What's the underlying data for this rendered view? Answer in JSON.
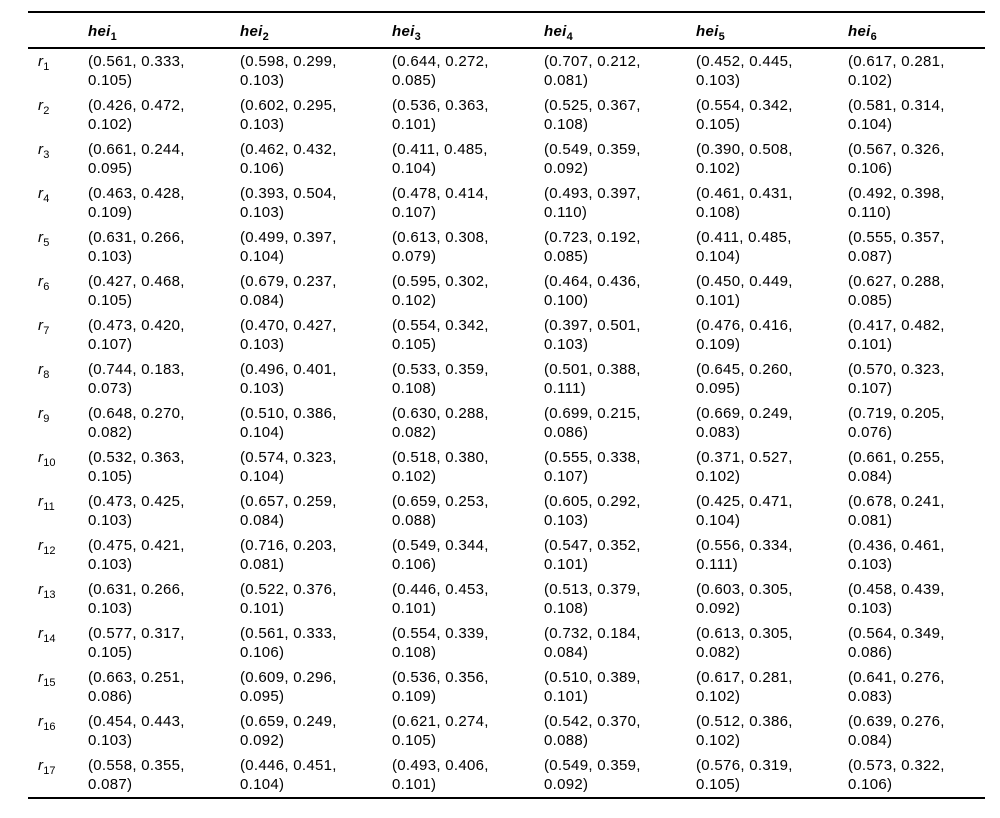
{
  "page": {
    "background_color": "#ffffff",
    "text_color": "#000000",
    "rule_color": "#000000"
  },
  "table": {
    "corner_label": "",
    "columns": [
      {
        "base": "hei",
        "sub": "1"
      },
      {
        "base": "hei",
        "sub": "2"
      },
      {
        "base": "hei",
        "sub": "3"
      },
      {
        "base": "hei",
        "sub": "4"
      },
      {
        "base": "hei",
        "sub": "5"
      },
      {
        "base": "hei",
        "sub": "6"
      }
    ],
    "rows": [
      {
        "label_base": "r",
        "label_sub": "1",
        "cells": [
          "(0.561, 0.333, 0.105)",
          "(0.598, 0.299, 0.103)",
          "(0.644, 0.272, 0.085)",
          "(0.707, 0.212, 0.081)",
          "(0.452, 0.445, 0.103)",
          "(0.617, 0.281, 0.102)"
        ]
      },
      {
        "label_base": "r",
        "label_sub": "2",
        "cells": [
          "(0.426, 0.472, 0.102)",
          "(0.602, 0.295, 0.103)",
          "(0.536, 0.363, 0.101)",
          "(0.525, 0.367, 0.108)",
          "(0.554, 0.342, 0.105)",
          "(0.581, 0.314, 0.104)"
        ]
      },
      {
        "label_base": "r",
        "label_sub": "3",
        "cells": [
          "(0.661, 0.244, 0.095)",
          "(0.462, 0.432, 0.106)",
          "(0.411, 0.485, 0.104)",
          "(0.549, 0.359, 0.092)",
          "(0.390, 0.508, 0.102)",
          "(0.567, 0.326, 0.106)"
        ]
      },
      {
        "label_base": "r",
        "label_sub": "4",
        "cells": [
          "(0.463, 0.428, 0.109)",
          "(0.393, 0.504, 0.103)",
          "(0.478, 0.414, 0.107)",
          "(0.493, 0.397, 0.110)",
          "(0.461, 0.431, 0.108)",
          "(0.492, 0.398, 0.110)"
        ]
      },
      {
        "label_base": "r",
        "label_sub": "5",
        "cells": [
          "(0.631, 0.266, 0.103)",
          "(0.499, 0.397, 0.104)",
          "(0.613, 0.308, 0.079)",
          "(0.723, 0.192, 0.085)",
          "(0.411, 0.485, 0.104)",
          "(0.555, 0.357, 0.087)"
        ]
      },
      {
        "label_base": "r",
        "label_sub": "6",
        "cells": [
          "(0.427, 0.468, 0.105)",
          "(0.679, 0.237, 0.084)",
          "(0.595, 0.302, 0.102)",
          "(0.464, 0.436, 0.100)",
          "(0.450, 0.449, 0.101)",
          "(0.627, 0.288, 0.085)"
        ]
      },
      {
        "label_base": "r",
        "label_sub": "7",
        "cells": [
          "(0.473, 0.420, 0.107)",
          "(0.470, 0.427, 0.103)",
          "(0.554, 0.342, 0.105)",
          "(0.397, 0.501, 0.103)",
          "(0.476, 0.416, 0.109)",
          "(0.417, 0.482, 0.101)"
        ]
      },
      {
        "label_base": "r",
        "label_sub": "8",
        "cells": [
          "(0.744, 0.183, 0.073)",
          "(0.496, 0.401, 0.103)",
          "(0.533, 0.359, 0.108)",
          "(0.501, 0.388, 0.111)",
          "(0.645, 0.260, 0.095)",
          "(0.570, 0.323, 0.107)"
        ]
      },
      {
        "label_base": "r",
        "label_sub": "9",
        "cells": [
          "(0.648, 0.270, 0.082)",
          "(0.510, 0.386, 0.104)",
          "(0.630, 0.288, 0.082)",
          "(0.699, 0.215, 0.086)",
          "(0.669, 0.249, 0.083)",
          "(0.719, 0.205, 0.076)"
        ]
      },
      {
        "label_base": "r",
        "label_sub": "10",
        "cells": [
          "(0.532, 0.363, 0.105)",
          "(0.574, 0.323, 0.104)",
          "(0.518, 0.380, 0.102)",
          "(0.555, 0.338, 0.107)",
          "(0.371, 0.527, 0.102)",
          "(0.661, 0.255, 0.084)"
        ]
      },
      {
        "label_base": "r",
        "label_sub": "11",
        "cells": [
          "(0.473, 0.425, 0.103)",
          "(0.657, 0.259, 0.084)",
          "(0.659, 0.253, 0.088)",
          "(0.605, 0.292, 0.103)",
          "(0.425, 0.471, 0.104)",
          "(0.678, 0.241, 0.081)"
        ]
      },
      {
        "label_base": "r",
        "label_sub": "12",
        "cells": [
          "(0.475, 0.421, 0.103)",
          "(0.716, 0.203, 0.081)",
          "(0.549, 0.344, 0.106)",
          "(0.547, 0.352, 0.101)",
          "(0.556, 0.334, 0.111)",
          "(0.436, 0.461, 0.103)"
        ]
      },
      {
        "label_base": "r",
        "label_sub": "13",
        "cells": [
          "(0.631, 0.266, 0.103)",
          "(0.522, 0.376, 0.101)",
          "(0.446, 0.453, 0.101)",
          "(0.513, 0.379, 0.108)",
          "(0.603, 0.305, 0.092)",
          "(0.458, 0.439, 0.103)"
        ]
      },
      {
        "label_base": "r",
        "label_sub": "14",
        "cells": [
          "(0.577, 0.317, 0.105)",
          "(0.561, 0.333, 0.106)",
          "(0.554, 0.339, 0.108)",
          "(0.732, 0.184, 0.084)",
          "(0.613, 0.305, 0.082)",
          "(0.564, 0.349, 0.086)"
        ]
      },
      {
        "label_base": "r",
        "label_sub": "15",
        "cells": [
          "(0.663, 0.251, 0.086)",
          "(0.609, 0.296, 0.095)",
          "(0.536, 0.356, 0.109)",
          "(0.510, 0.389, 0.101)",
          "(0.617, 0.281, 0.102)",
          "(0.641, 0.276, 0.083)"
        ]
      },
      {
        "label_base": "r",
        "label_sub": "16",
        "cells": [
          "(0.454, 0.443, 0.103)",
          "(0.659, 0.249, 0.092)",
          "(0.621, 0.274, 0.105)",
          "(0.542, 0.370, 0.088)",
          "(0.512, 0.386, 0.102)",
          "(0.639, 0.276, 0.084)"
        ]
      },
      {
        "label_base": "r",
        "label_sub": "17",
        "cells": [
          "(0.558, 0.355, 0.087)",
          "(0.446, 0.451, 0.104)",
          "(0.493, 0.406, 0.101)",
          "(0.549, 0.359, 0.092)",
          "(0.576, 0.319, 0.105)",
          "(0.573, 0.322, 0.106)"
        ]
      }
    ]
  }
}
